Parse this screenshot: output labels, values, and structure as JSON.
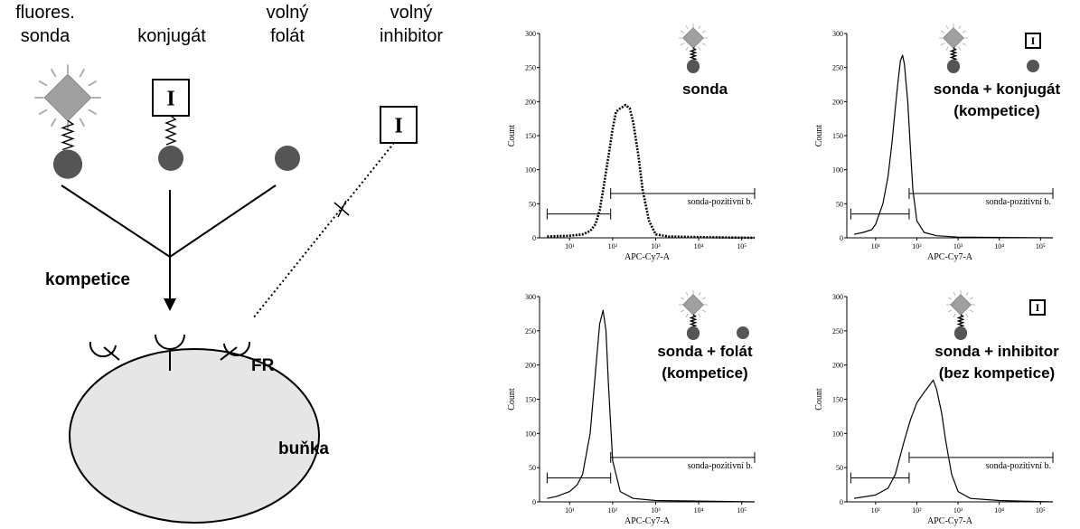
{
  "diagram": {
    "probe_label": [
      "fluores.",
      "sonda"
    ],
    "conjugate_label": "konjugát",
    "folate_label": [
      "volný",
      "folát"
    ],
    "inhibitor_label": [
      "volný",
      "inhibitor"
    ],
    "inhibitor_symbol": "I",
    "competition_label": "kompetice",
    "receptor_label": "FR",
    "cell_label": "buňka"
  },
  "chart_data": [
    {
      "type": "line",
      "xlabel": "APC-Cy7-A",
      "ylabel": "Count",
      "x_scale": "log",
      "xlim": [
        2,
        200000
      ],
      "ylim": [
        0,
        300
      ],
      "xticks": [
        {
          "value": 10,
          "label": "10¹"
        },
        {
          "value": 100,
          "label": "10²"
        },
        {
          "value": 1000,
          "label": "10³"
        },
        {
          "value": 10000,
          "label": "10⁴"
        },
        {
          "value": 100000,
          "label": "10⁵"
        }
      ],
      "yticks": [
        0,
        50,
        100,
        150,
        200,
        250,
        300
      ],
      "line_style": "dotted",
      "color": "#000000",
      "labels": [
        "sonda"
      ],
      "x": [
        3,
        10,
        20,
        30,
        40,
        50,
        60,
        80,
        100,
        120,
        150,
        200,
        250,
        300,
        400,
        500,
        700,
        1000,
        2000,
        10000,
        200000
      ],
      "values": [
        2,
        3,
        5,
        10,
        20,
        40,
        70,
        120,
        160,
        185,
        190,
        195,
        190,
        170,
        120,
        70,
        25,
        5,
        2,
        1,
        0
      ],
      "gates": [
        {
          "range": [
            3,
            90
          ],
          "level": 35
        },
        {
          "range": [
            90,
            200000
          ],
          "level": 65,
          "label": "sonda-pozitivní b."
        }
      ]
    },
    {
      "type": "line",
      "xlabel": "APC-Cy7-A",
      "ylabel": "Count",
      "x_scale": "log",
      "xlim": [
        2,
        200000
      ],
      "ylim": [
        0,
        300
      ],
      "xticks": [
        {
          "value": 10,
          "label": "10¹"
        },
        {
          "value": 100,
          "label": "10²"
        },
        {
          "value": 1000,
          "label": "10³"
        },
        {
          "value": 10000,
          "label": "10⁴"
        },
        {
          "value": 100000,
          "label": "10⁵"
        }
      ],
      "yticks": [
        0,
        50,
        100,
        150,
        200,
        250,
        300
      ],
      "line_style": "solid",
      "color": "#000000",
      "labels": [
        "sonda + konjugát",
        "(kompetice)"
      ],
      "x": [
        3,
        5,
        8,
        10,
        15,
        20,
        25,
        30,
        35,
        40,
        45,
        50,
        60,
        70,
        80,
        100,
        150,
        300,
        1000,
        200000
      ],
      "values": [
        5,
        8,
        12,
        20,
        50,
        90,
        140,
        190,
        230,
        260,
        268,
        255,
        200,
        130,
        70,
        25,
        8,
        3,
        1,
        0
      ],
      "gates": [
        {
          "range": [
            2.5,
            65
          ],
          "level": 35
        },
        {
          "range": [
            65,
            200000
          ],
          "level": 65,
          "label": "sonda-pozitivní b."
        }
      ]
    },
    {
      "type": "line",
      "xlabel": "APC-Cy7-A",
      "ylabel": "Count",
      "x_scale": "log",
      "xlim": [
        2,
        200000
      ],
      "ylim": [
        0,
        300
      ],
      "xticks": [
        {
          "value": 10,
          "label": "10¹"
        },
        {
          "value": 100,
          "label": "10²"
        },
        {
          "value": 1000,
          "label": "10³"
        },
        {
          "value": 10000,
          "label": "10⁴"
        },
        {
          "value": 100000,
          "label": "10⁵"
        }
      ],
      "yticks": [
        0,
        50,
        100,
        150,
        200,
        250,
        300
      ],
      "line_style": "solid",
      "color": "#000000",
      "labels": [
        "sonda + folát",
        "(kompetice)"
      ],
      "x": [
        3,
        5,
        10,
        15,
        20,
        30,
        40,
        50,
        60,
        70,
        80,
        100,
        150,
        300,
        1000,
        200000
      ],
      "values": [
        5,
        8,
        15,
        25,
        40,
        100,
        190,
        260,
        280,
        250,
        170,
        60,
        15,
        5,
        2,
        0
      ],
      "gates": [
        {
          "range": [
            3,
            90
          ],
          "level": 35
        },
        {
          "range": [
            90,
            200000
          ],
          "level": 65,
          "label": "sonda-pozitivní b."
        }
      ]
    },
    {
      "type": "line",
      "xlabel": "APC-Cy7-A",
      "ylabel": "Count",
      "x_scale": "log",
      "xlim": [
        2,
        200000
      ],
      "ylim": [
        0,
        300
      ],
      "xticks": [
        {
          "value": 10,
          "label": "10¹"
        },
        {
          "value": 100,
          "label": "10²"
        },
        {
          "value": 1000,
          "label": "10³"
        },
        {
          "value": 10000,
          "label": "10⁴"
        },
        {
          "value": 100000,
          "label": "10⁵"
        }
      ],
      "yticks": [
        0,
        50,
        100,
        150,
        200,
        250,
        300
      ],
      "line_style": "solid",
      "color": "#000000",
      "labels": [
        "sonda + inhibitor",
        "(bez kompetice)"
      ],
      "x": [
        3,
        10,
        20,
        30,
        50,
        70,
        100,
        150,
        200,
        250,
        300,
        400,
        500,
        700,
        1000,
        2000,
        10000,
        200000
      ],
      "values": [
        5,
        10,
        20,
        40,
        90,
        120,
        145,
        160,
        170,
        178,
        165,
        130,
        90,
        40,
        15,
        5,
        2,
        0
      ],
      "gates": [
        {
          "range": [
            2.5,
            65
          ],
          "level": 35
        },
        {
          "range": [
            65,
            200000
          ],
          "level": 65,
          "label": "sonda-pozitivní b."
        }
      ]
    }
  ]
}
